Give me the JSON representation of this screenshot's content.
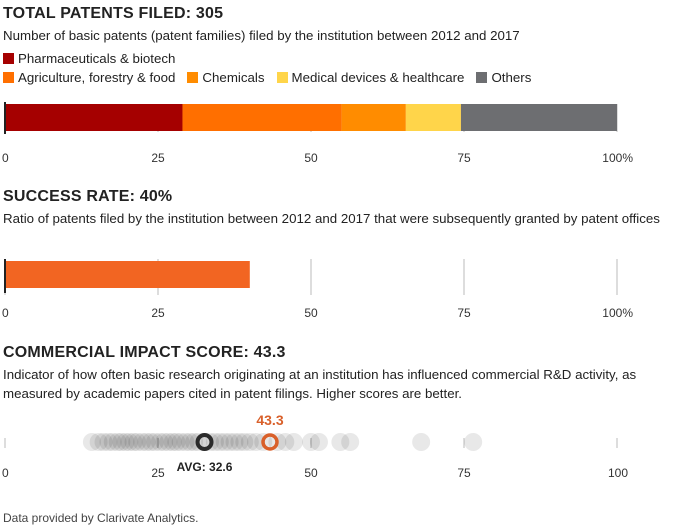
{
  "patents": {
    "title": "TOTAL PATENTS FILED: 305",
    "description": "Number of basic patents (patent families) filed by the institution between 2012 and 2017",
    "chart_data": {
      "type": "bar",
      "orientation": "horizontal-stacked",
      "series": [
        {
          "name": "Pharmaceuticals & biotech",
          "value": 29,
          "color": "#a50000"
        },
        {
          "name": "Agriculture, forestry & food",
          "value": 26,
          "color": "#ff6f00"
        },
        {
          "name": "Chemicals",
          "value": 10.5,
          "color": "#ff8c00"
        },
        {
          "name": "Medical devices & healthcare",
          "value": 9,
          "color": "#ffd54a"
        },
        {
          "name": "Others",
          "value": 25.5,
          "color": "#6d6e71"
        }
      ],
      "xlim": [
        0,
        100
      ],
      "ticks": [
        "0",
        "25",
        "50",
        "75",
        "100%"
      ]
    }
  },
  "success": {
    "title": "SUCCESS RATE: 40%",
    "description": "Ratio of patents filed by the institution between 2012 and 2017 that were subsequently granted by patent offices",
    "chart_data": {
      "type": "bar",
      "value": 40,
      "color": "#f26522",
      "xlim": [
        0,
        100
      ],
      "ticks": [
        "0",
        "25",
        "50",
        "75",
        "100%"
      ]
    }
  },
  "impact": {
    "title": "COMMERCIAL IMPACT SCORE: 43.3",
    "description": "Indicator of how often basic research originating at an institution has influenced commercial R&D activity, as measured by academic papers cited in patent filings. Higher scores are better.",
    "chart_data": {
      "type": "scatter",
      "highlight": {
        "value": 43.3,
        "label": "43.3",
        "color": "#d9602a"
      },
      "average": {
        "value": 32.6,
        "label": "AVG: 32.6"
      },
      "others": [
        14.2,
        15.3,
        16.1,
        16.9,
        17.6,
        18.4,
        19.0,
        19.7,
        20.3,
        21.0,
        21.6,
        22.4,
        23.1,
        23.8,
        24.5,
        25.3,
        26.0,
        26.7,
        27.4,
        28.0,
        28.7,
        29.5,
        30.2,
        30.9,
        31.6,
        33.5,
        34.3,
        35.1,
        35.9,
        36.7,
        37.5,
        38.3,
        39.1,
        40.0,
        41.0,
        42.2,
        44.5,
        45.8,
        47.2,
        50.0,
        51.3,
        54.8,
        56.4,
        68.0,
        76.5
      ],
      "xlim": [
        0,
        100
      ],
      "ticks": [
        "0",
        "25",
        "50",
        "75",
        "100"
      ]
    }
  },
  "footer": "Data provided by Clarivate Analytics."
}
